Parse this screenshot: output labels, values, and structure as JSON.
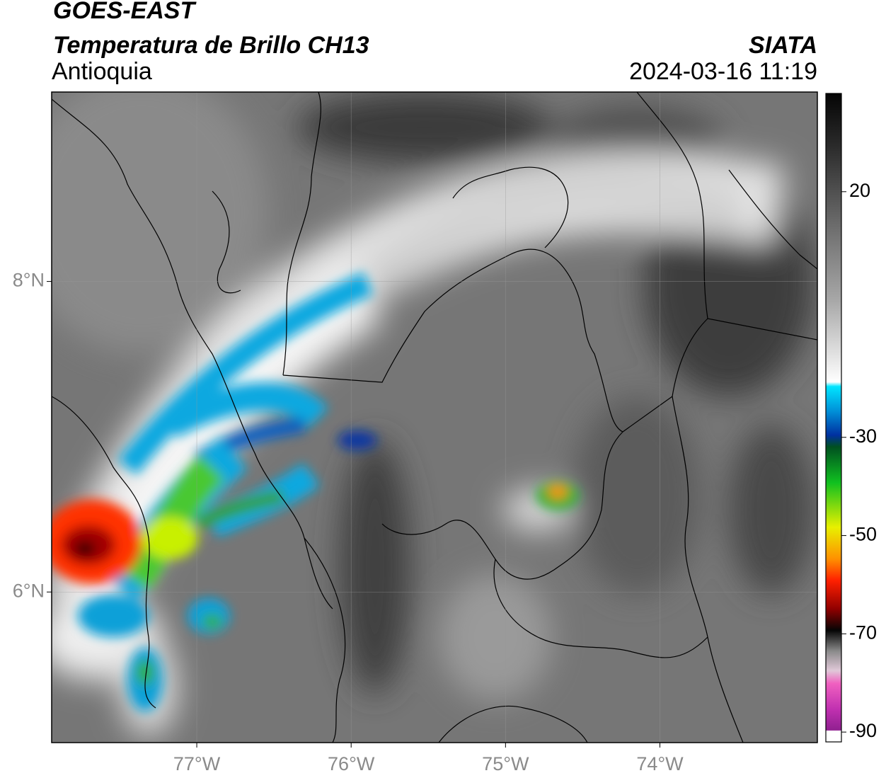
{
  "header": {
    "title": "GOES-EAST",
    "subtitle": "Temperatura de Brillo CH13",
    "region": "Antioquia",
    "source": "SIATA",
    "timestamp": "2024-03-16 11:19"
  },
  "map": {
    "xlim": [
      -77.94,
      -72.98
    ],
    "ylim": [
      5.03,
      9.22
    ],
    "xticks": [
      {
        "value": -77,
        "label": "77°W"
      },
      {
        "value": -76,
        "label": "76°W"
      },
      {
        "value": -75,
        "label": "75°W"
      },
      {
        "value": -74,
        "label": "74°W"
      }
    ],
    "yticks": [
      {
        "value": 6,
        "label": "6°N"
      },
      {
        "value": 8,
        "label": "8°N"
      }
    ],
    "grid": true
  },
  "colorbar": {
    "ylim": [
      -92,
      40
    ],
    "yticks": [
      20,
      -30,
      -50,
      -70,
      -90
    ]
  }
}
